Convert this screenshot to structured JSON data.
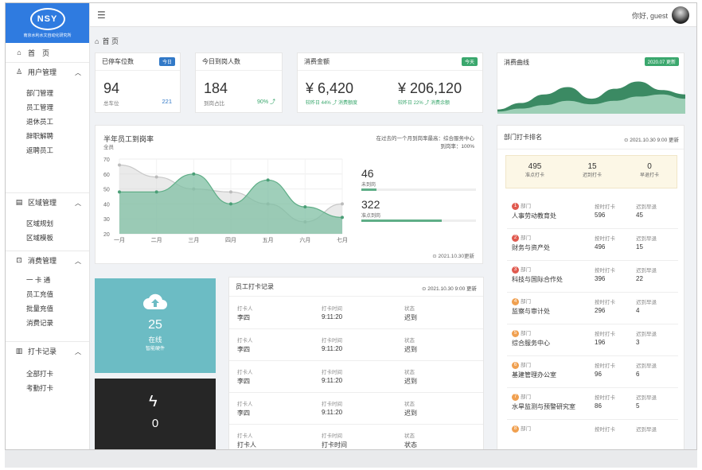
{
  "sidebar": {
    "logo_mark": "NSY",
    "logo_text": "南京水利水文自动化研究所",
    "home": "首　页",
    "groups": [
      {
        "label": "用户管理",
        "items": [
          "部门管理",
          "员工管理",
          "退休员工",
          "辞职解聘",
          "返聘员工"
        ]
      },
      {
        "label": "区域管理",
        "items": [
          "区域规划",
          "区域模板"
        ]
      },
      {
        "label": "消费管理",
        "items": [
          "一 卡 通",
          "员工充值",
          "批量充值",
          "消费记录"
        ]
      },
      {
        "label": "打卡记录",
        "items": [
          "全部打卡",
          "考勤打卡"
        ]
      }
    ]
  },
  "header": {
    "greeting": "你好,  guest"
  },
  "breadcrumb": "首 页",
  "cards": {
    "parking": {
      "title": "已停车位数",
      "tag": "今日",
      "value": "94",
      "sub_label": "总车位",
      "sub_value": "221"
    },
    "arrival": {
      "title": "今日到岗人数",
      "value": "184",
      "sub_label": "到岗占比",
      "sub_value": "90% ⤴"
    },
    "consume": {
      "title": "消费金额",
      "tag": "今天",
      "value1": "¥ 6,420",
      "sub1": "较昨日 44% ⤴ 消费额度",
      "value2": "¥ 206,120",
      "sub2": "较昨日 22% ⤴ 消费余额"
    },
    "curve": {
      "title": "消费曲线",
      "tag": "2020.07 更新",
      "upper": [
        0.1,
        0.25,
        0.45,
        0.62,
        0.35,
        0.58,
        0.75,
        0.55,
        0.45
      ],
      "lower": [
        0.05,
        0.12,
        0.2,
        0.3,
        0.22,
        0.3,
        0.4,
        0.45,
        0.35
      ]
    }
  },
  "half_year": {
    "title": "半年员工到岗率",
    "subtitle": "全员",
    "note1": "在过去的一个月到岗率最高：综合服务中心",
    "note2": "到岗率：100%",
    "stat1_value": "46",
    "stat1_label": "未到岗",
    "stat1_fraction": 0.13,
    "stat2_value": "322",
    "stat2_label": "准点到岗",
    "stat2_fraction": 0.7,
    "updated": "⊙ 2021.10.30更新"
  },
  "chart_data": {
    "type": "area",
    "categories": [
      "一月",
      "二月",
      "三月",
      "四月",
      "五月",
      "六月",
      "七月"
    ],
    "series": [
      {
        "values": [
          48,
          48,
          60,
          40,
          56,
          38,
          31
        ],
        "color": "#7fbfa3"
      },
      {
        "values": [
          66,
          58,
          50,
          48,
          40,
          28,
          40
        ],
        "color": "#d9d9d9"
      }
    ],
    "ylim": [
      20,
      70
    ],
    "yticks": [
      "20",
      "30",
      "40",
      "50",
      "60",
      "70"
    ],
    "grid": true
  },
  "online_tile": {
    "value": "25",
    "label": "在线",
    "sub": "智能硬件"
  },
  "power_tile": {
    "value": "0"
  },
  "records": {
    "title": "员工打卡记录",
    "updated": "⊙ 2021.10.30 9:00 更新",
    "labels": {
      "person": "打卡人",
      "time": "打卡时间",
      "status": "状态"
    },
    "rows": [
      {
        "person": "李四",
        "time": "9:11:20",
        "status": "迟到"
      },
      {
        "person": "李四",
        "time": "9:11:20",
        "status": "迟到"
      },
      {
        "person": "李四",
        "time": "9:11:20",
        "status": "迟到"
      },
      {
        "person": "李四",
        "time": "9:11:20",
        "status": "迟到"
      },
      {
        "person": "打卡人",
        "time": "打卡时间",
        "status": "状态"
      }
    ]
  },
  "ranking": {
    "title": "部门打卡排名",
    "updated": "⊙ 2021.10.30 9:00 更新",
    "summary": [
      {
        "value": "495",
        "label": "准点打卡"
      },
      {
        "value": "15",
        "label": "迟到打卡"
      },
      {
        "value": "0",
        "label": "早退打卡"
      }
    ],
    "labels": {
      "dept": "部门",
      "on_time": "按时打卡",
      "late": "迟到早退"
    },
    "rows": [
      {
        "rank": "1",
        "name": "人事劳动教育处",
        "on_time": "596",
        "late": "45",
        "color": "#e05a4f"
      },
      {
        "rank": "2",
        "name": "财务与资产处",
        "on_time": "496",
        "late": "15",
        "color": "#e05a4f"
      },
      {
        "rank": "3",
        "name": "科技与国际合作处",
        "on_time": "396",
        "late": "22",
        "color": "#e05a4f"
      },
      {
        "rank": "4",
        "name": "监察与审计处",
        "on_time": "296",
        "late": "4",
        "color": "#f0a050"
      },
      {
        "rank": "5",
        "name": "综合服务中心",
        "on_time": "196",
        "late": "3",
        "color": "#f0a050"
      },
      {
        "rank": "6",
        "name": "基建管理办公室",
        "on_time": "96",
        "late": "6",
        "color": "#f0a050"
      },
      {
        "rank": "7",
        "name": "水旱监测与预警研究室",
        "on_time": "86",
        "late": "5",
        "color": "#f0a050"
      },
      {
        "rank": "8",
        "name": "",
        "on_time": "",
        "late": "",
        "color": "#f0a050"
      }
    ]
  }
}
